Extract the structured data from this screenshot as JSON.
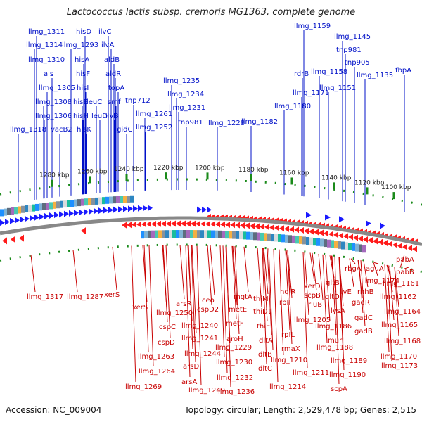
{
  "title": "Lactococcus lactis subsp. cremoris MG1363, complete genome",
  "footer": {
    "accession": "Accession: NC_009004",
    "summary": "Topology: circular; Length: 2,529,478 bp; Genes: 2,515"
  },
  "colors": {
    "forward_label": "#0010c8",
    "reverse_label": "#c80000",
    "forward_arrow": "#1a1aff",
    "reverse_arrow": "#ff1a1a",
    "backbone": "#888888",
    "kbp_tick": "#1a8a1a"
  },
  "kbp_ticks": [
    "1100 kbp",
    "1120 kbp",
    "1140 kbp",
    "1160 kbp",
    "1180 kbp",
    "1200 kbp",
    "1220 kbp",
    "1240 kbp",
    "1260 kbp",
    "1280 kbp"
  ],
  "forward_genes": [
    "llmg_1311",
    "hisD",
    "ilvC",
    "llmg_1314",
    "llmg_1293",
    "ilvA",
    "llmg_1310",
    "hisA",
    "aldB",
    "als",
    "hisF",
    "aldR",
    "llmg_1305",
    "hisI",
    "topA",
    "llmg_1308",
    "hisB",
    "leuC",
    "smf",
    "llmg_1306",
    "hisH",
    "leuD",
    "ilvB",
    "gidC",
    "llmg_1318",
    "vacB2",
    "hisK",
    "tnp712",
    "llmg_1261",
    "llmg_1252",
    "llmg_1235",
    "llmg_1234",
    "llmg_1231",
    "tnp981",
    "llmg_1228",
    "llmg_1182",
    "rdrB",
    "llmg_1171",
    "llmg_1180",
    "llmg_1158",
    "llmg_1151",
    "llmg_1159",
    "llmg_1145",
    "tnp981",
    "tnp905",
    "llmg_1135",
    "fbpA"
  ],
  "reverse_genes": [
    "llmg_1317",
    "llmg_1287",
    "xerS",
    "xerS",
    "arsR",
    "llmg_1250",
    "ceo",
    "cspD2",
    "cspC",
    "llmg_1240",
    "cspD",
    "llmg_1241",
    "llmg_1244",
    "llmg_1263",
    "arsD",
    "llmg_1264",
    "arsA",
    "llmg_1269",
    "llmg_1249",
    "mgtA",
    "metE",
    "metF",
    "aroH",
    "llmg_1229",
    "llmg_1230",
    "llmg_1232",
    "llmg_1236",
    "thiM",
    "thiD1",
    "thiE",
    "dltA",
    "dltB",
    "dltC",
    "hdiR",
    "rpII",
    "llmg_1205",
    "rpIL",
    "rmaX",
    "llmg_1210",
    "llmg_1211",
    "llmg_1214",
    "xerD",
    "scpB",
    "rluB",
    "gltB",
    "gltD",
    "lysA",
    "llmg_1186",
    "murl",
    "llmg_1188",
    "llmg_1189",
    "llmg_1190",
    "scpA",
    "rbgA",
    "aguA",
    "llmg_1174",
    "pabA",
    "rnhB",
    "pabB",
    "ilvE",
    "llmg_1161",
    "gadR",
    "llmg_1162",
    "llmg_1164",
    "gadC",
    "gadB",
    "llmg_1165",
    "llmg_1168",
    "llmg_1170",
    "llmg_1173"
  ]
}
